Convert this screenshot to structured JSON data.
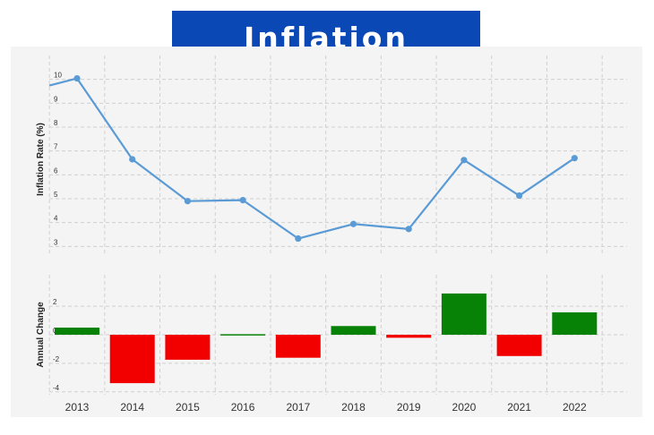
{
  "title": "Inflation",
  "colors": {
    "banner": "#0a49b5",
    "line": "#5b9bd5",
    "positive": "#078207",
    "negative": "#f20000",
    "plot_bg": "#f4f4f4",
    "grid": "#d0d0d0"
  },
  "chart_data": [
    {
      "type": "line",
      "ylabel": "Inflation Rate (%)",
      "x": [
        "2013",
        "2014",
        "2015",
        "2016",
        "2017",
        "2018",
        "2019",
        "2020",
        "2021",
        "2022"
      ],
      "values": [
        10.04,
        6.65,
        4.9,
        4.94,
        3.33,
        3.94,
        3.73,
        6.62,
        5.13,
        6.7
      ],
      "ylim": [
        2.6,
        11
      ],
      "yticks": [
        "3",
        "4",
        "5",
        "6",
        "7",
        "8",
        "9",
        "10"
      ],
      "grid": true
    },
    {
      "type": "bar",
      "ylabel": "Annual Change",
      "x": [
        "2013",
        "2014",
        "2015",
        "2016",
        "2017",
        "2018",
        "2019",
        "2020",
        "2021",
        "2022"
      ],
      "values": [
        0.5,
        -3.39,
        -1.75,
        0.04,
        -1.61,
        0.61,
        -0.21,
        2.89,
        -1.49,
        1.57
      ],
      "ylim": [
        -4.2,
        4.2
      ],
      "yticks": [
        "-4",
        "-2",
        "0",
        "2"
      ],
      "grid": true
    }
  ]
}
